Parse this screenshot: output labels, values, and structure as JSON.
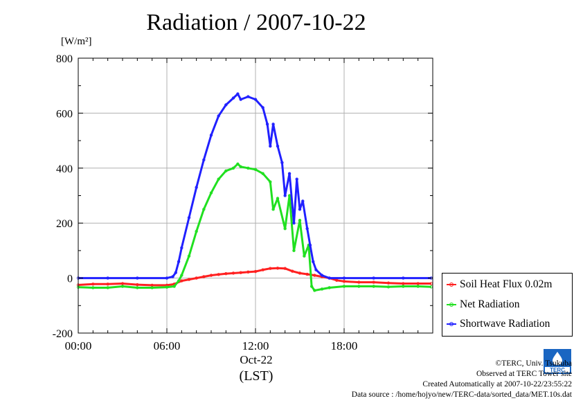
{
  "title": "Radiation / 2007-10-22",
  "unit_label": "[W/m²]",
  "chart_data": {
    "type": "line",
    "title": "Radiation / 2007-10-22",
    "ylabel": "[W/m²]",
    "xlabel": "(LST)",
    "date_label": "Oct-22",
    "ylim": [
      -200,
      800
    ],
    "xlim": [
      0,
      24
    ],
    "yticks": [
      -200,
      0,
      200,
      400,
      600,
      800
    ],
    "ytick_labels": [
      "-200",
      "0",
      "200",
      "400",
      "600",
      "800"
    ],
    "xticks": [
      0,
      6,
      12,
      18
    ],
    "xtick_labels": [
      "00:00",
      "06:00",
      "12:00",
      "18:00"
    ],
    "grid": true,
    "legend_position": "right",
    "series": [
      {
        "name": "Soil Heat Flux 0.02m",
        "color": "#ff2020",
        "x": [
          0,
          1,
          2,
          3,
          4,
          5,
          6,
          6.5,
          7,
          7.5,
          8,
          8.5,
          9,
          9.5,
          10,
          10.5,
          11,
          11.5,
          12,
          12.5,
          13,
          13.5,
          14,
          14.5,
          15,
          15.5,
          16,
          16.5,
          17,
          17.5,
          18,
          19,
          20,
          21,
          22,
          23,
          23.9
        ],
        "values": [
          -25,
          -22,
          -22,
          -20,
          -24,
          -26,
          -26,
          -22,
          -10,
          -5,
          0,
          5,
          10,
          13,
          16,
          18,
          20,
          22,
          24,
          30,
          35,
          36,
          35,
          25,
          18,
          14,
          10,
          5,
          0,
          -8,
          -12,
          -15,
          -15,
          -18,
          -20,
          -20,
          -20
        ]
      },
      {
        "name": "Net Radiation",
        "color": "#20e020",
        "x": [
          0,
          1,
          2,
          3,
          4,
          5,
          6,
          6.5,
          6.8,
          7,
          7.5,
          8,
          8.5,
          9,
          9.5,
          10,
          10.5,
          10.8,
          11,
          11.5,
          12,
          12.5,
          13,
          13.2,
          13.5,
          14,
          14.3,
          14.6,
          15,
          15.3,
          15.6,
          15.8,
          16,
          16.5,
          17,
          18,
          19,
          20,
          21,
          22,
          23,
          23.9
        ],
        "values": [
          -33,
          -35,
          -35,
          -30,
          -35,
          -35,
          -33,
          -30,
          -10,
          10,
          80,
          170,
          250,
          310,
          360,
          390,
          400,
          415,
          405,
          400,
          395,
          380,
          350,
          250,
          290,
          180,
          300,
          100,
          210,
          80,
          120,
          -30,
          -45,
          -40,
          -35,
          -30,
          -30,
          -30,
          -32,
          -30,
          -30,
          -32
        ]
      },
      {
        "name": "Shortwave Radiation",
        "color": "#2020ff",
        "x": [
          0,
          2,
          4,
          6,
          6.4,
          6.6,
          6.8,
          7,
          7.5,
          8,
          8.5,
          9,
          9.5,
          10,
          10.5,
          10.8,
          11,
          11.5,
          12,
          12.5,
          12.8,
          13,
          13.2,
          13.5,
          13.8,
          14,
          14.3,
          14.6,
          14.8,
          15,
          15.2,
          15.5,
          15.7,
          15.9,
          16.1,
          16.5,
          17,
          18,
          20,
          22,
          23.9
        ],
        "values": [
          0,
          0,
          0,
          0,
          5,
          20,
          60,
          110,
          220,
          330,
          430,
          520,
          590,
          630,
          655,
          670,
          650,
          660,
          650,
          620,
          560,
          480,
          560,
          480,
          420,
          300,
          380,
          200,
          360,
          250,
          280,
          180,
          120,
          60,
          30,
          10,
          0,
          0,
          0,
          0,
          0
        ]
      }
    ]
  },
  "legend": [
    {
      "label": "Soil Heat Flux 0.02m",
      "color": "#ff2020"
    },
    {
      "label": "Net Radiation",
      "color": "#20e020"
    },
    {
      "label": "Shortwave Radiation",
      "color": "#2020ff"
    }
  ],
  "footer": {
    "copyright": "©TERC, Univ. Tsukuba",
    "observed": "Observed at TERC Tower site",
    "created": "Created Automatically at 2007-10-22/23:55:22",
    "source": "Data source : /home/hojyo/new/TERC-data/sorted_data/MET.10s.dat"
  },
  "logo": {
    "name": "terc-logo",
    "text": "TERC",
    "color": "#1a66c2"
  }
}
